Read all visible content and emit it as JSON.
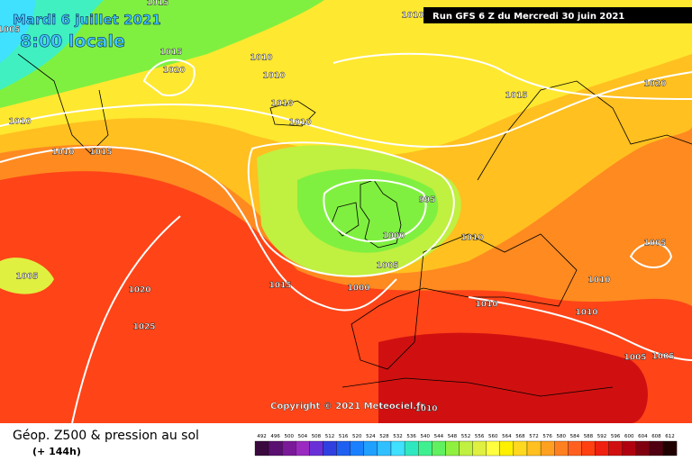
{
  "header": {
    "date": "Mardi 6 juillet 2021",
    "time": "8:00 locale",
    "run": "Run GFS 6 Z du Mercredi 30 juin 2021"
  },
  "copyright": "Copyright © 2021 Meteociel.fr",
  "legend": {
    "title": "Géop. Z500 & pression au sol",
    "lead": "(+ 144h)"
  },
  "isobar_labels": [
    1015,
    1005,
    1010,
    1015,
    1010,
    1020,
    1010,
    1010,
    1010,
    1010,
    1010,
    1015,
    1015,
    1020,
    995,
    1000,
    1010,
    1005,
    1005,
    1020,
    1005,
    1015,
    1000,
    1010,
    1010,
    1010,
    1025,
    1005,
    1005,
    1010
  ],
  "scale": {
    "labels": [
      492,
      496,
      500,
      504,
      508,
      512,
      516,
      520,
      524,
      528,
      532,
      536,
      540,
      544,
      548,
      552,
      556,
      560,
      564,
      568,
      572,
      576,
      580,
      584,
      588,
      592,
      596,
      600,
      604,
      608,
      612
    ],
    "colors": [
      "#3a0a3e",
      "#5a1070",
      "#7a1a98",
      "#9a2ac0",
      "#6a30d8",
      "#3040e0",
      "#2060f0",
      "#1a80ff",
      "#20a0ff",
      "#30c0ff",
      "#40e0ff",
      "#30e8c0",
      "#40f090",
      "#60f060",
      "#90f040",
      "#c0f040",
      "#e0f040",
      "#ffff40",
      "#fff000",
      "#ffd820",
      "#ffc020",
      "#ffa020",
      "#ff8020",
      "#ff6020",
      "#ff4010",
      "#f02010",
      "#d01010",
      "#b00010",
      "#800010",
      "#500010",
      "#200000"
    ]
  }
}
